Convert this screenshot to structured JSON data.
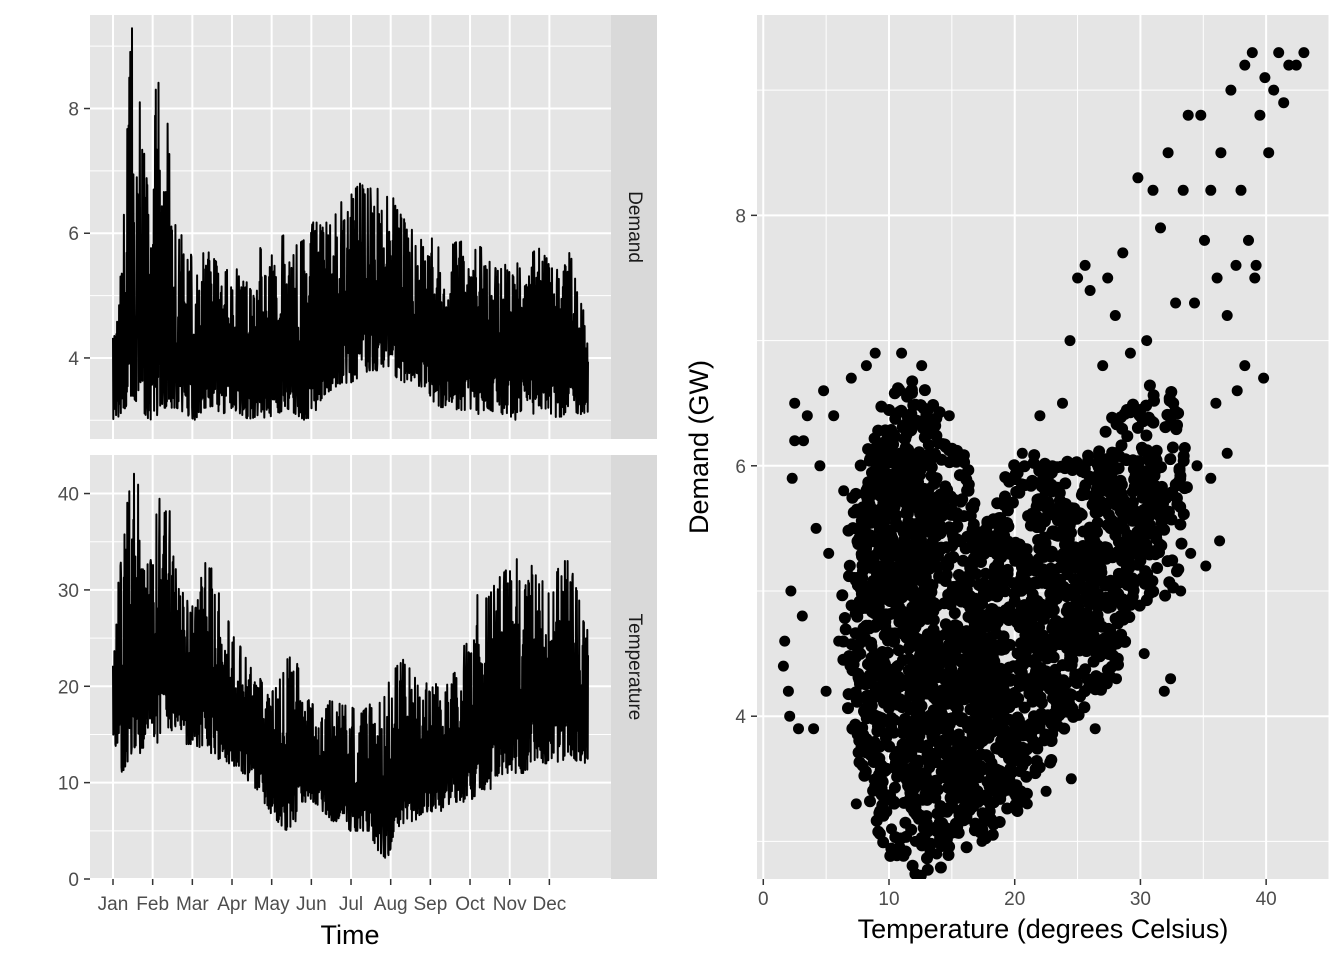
{
  "colors": {
    "panel_background": "#e5e5e5",
    "grid_major": "#ffffff",
    "strip_background": "#d9d9d9",
    "series": "#000000",
    "tick_text": "#4d4d4d"
  },
  "chart_data": [
    {
      "type": "line",
      "facets": [
        "Demand",
        "Temperature"
      ],
      "xlabel": "Time",
      "x_tick_labels": [
        "Jan",
        "Feb",
        "Mar",
        "Apr",
        "May",
        "Jun",
        "Jul",
        "Aug",
        "Sep",
        "Oct",
        "Nov",
        "Dec"
      ],
      "x_unit": "day of year",
      "x_range": [
        1,
        365
      ],
      "series": [
        {
          "facet": "Demand",
          "ylim": [
            2.7,
            9.5
          ],
          "y_ticks": [
            4,
            6,
            8
          ],
          "x": [
            1,
            8,
            15,
            19,
            22,
            29,
            36,
            38,
            43,
            50,
            57,
            64,
            71,
            78,
            85,
            92,
            99,
            106,
            113,
            120,
            127,
            134,
            141,
            148,
            155,
            162,
            169,
            176,
            183,
            190,
            197,
            204,
            211,
            218,
            225,
            232,
            239,
            246,
            253,
            260,
            267,
            274,
            281,
            288,
            295,
            302,
            309,
            316,
            323,
            330,
            337,
            344,
            351,
            358,
            365
          ],
          "low": [
            3.0,
            3.1,
            3.4,
            3.3,
            3.2,
            3.0,
            3.1,
            3.2,
            3.2,
            3.2,
            3.1,
            3.0,
            3.2,
            3.2,
            3.1,
            3.2,
            3.1,
            3.0,
            3.1,
            3.0,
            3.1,
            3.2,
            3.1,
            3.0,
            3.1,
            3.4,
            3.5,
            3.6,
            3.6,
            3.7,
            3.8,
            3.8,
            3.9,
            3.7,
            3.5,
            3.6,
            3.5,
            3.3,
            3.2,
            3.3,
            3.1,
            3.2,
            3.1,
            3.2,
            3.1,
            3.1,
            3.0,
            3.2,
            3.1,
            3.2,
            3.1,
            3.0,
            3.2,
            3.1,
            3.1
          ],
          "high": [
            4.4,
            5.6,
            9.3,
            9.2,
            7.9,
            6.4,
            9.2,
            6.3,
            7.8,
            5.8,
            6.2,
            5.2,
            5.8,
            5.6,
            5.4,
            5.7,
            5.2,
            5.3,
            5.8,
            5.5,
            5.9,
            6.0,
            5.8,
            5.9,
            6.2,
            6.1,
            6.3,
            6.5,
            6.6,
            6.8,
            6.7,
            6.8,
            6.9,
            6.4,
            6.2,
            6.0,
            6.1,
            5.9,
            5.7,
            5.8,
            5.9,
            5.6,
            5.8,
            5.7,
            5.4,
            5.5,
            5.6,
            5.3,
            5.7,
            5.8,
            5.6,
            5.3,
            5.7,
            5.1,
            4.4
          ]
        },
        {
          "facet": "Temperature",
          "ylim": [
            0,
            44
          ],
          "y_ticks": [
            0,
            10,
            20,
            30,
            40
          ],
          "x": [
            1,
            8,
            15,
            19,
            22,
            29,
            36,
            38,
            43,
            50,
            57,
            64,
            71,
            78,
            85,
            92,
            99,
            106,
            113,
            120,
            127,
            134,
            141,
            148,
            155,
            162,
            169,
            176,
            183,
            190,
            197,
            204,
            211,
            218,
            225,
            232,
            239,
            246,
            253,
            260,
            267,
            274,
            281,
            288,
            295,
            302,
            309,
            316,
            323,
            330,
            337,
            344,
            351,
            358,
            365
          ],
          "low": [
            15,
            11,
            13,
            14,
            13,
            15,
            14,
            16,
            15,
            16,
            14,
            14,
            13,
            13,
            12,
            12,
            11,
            10,
            9,
            7,
            6,
            5,
            6,
            8,
            8,
            7,
            6,
            6,
            5,
            5,
            5,
            3,
            2,
            5,
            6,
            6,
            7,
            7,
            7,
            8,
            8,
            8,
            9,
            9,
            10,
            11,
            11,
            11,
            12,
            12,
            12,
            12,
            13,
            12,
            12
          ],
          "high": [
            26,
            34,
            43,
            43,
            38,
            32,
            41,
            36,
            40,
            31,
            29,
            28,
            33,
            32,
            28,
            26,
            24,
            22,
            21,
            19,
            20,
            23,
            23,
            19,
            18,
            17,
            19,
            18,
            18,
            17,
            18,
            19,
            20,
            22,
            23,
            21,
            20,
            21,
            19,
            21,
            22,
            27,
            30,
            29,
            31,
            32,
            34,
            30,
            33,
            31,
            30,
            33,
            33,
            29,
            26
          ]
        }
      ]
    },
    {
      "type": "scatter",
      "xlabel": "Temperature (degrees Celsius)",
      "ylabel": "Demand (GW)",
      "xlim": [
        -0.5,
        45
      ],
      "ylim": [
        2.7,
        9.6
      ],
      "x_ticks": [
        0,
        10,
        20,
        30,
        40
      ],
      "y_ticks": [
        4,
        6,
        8
      ],
      "points": [
        [
          1.6,
          4.4
        ],
        [
          1.7,
          4.6
        ],
        [
          2.0,
          4.2
        ],
        [
          2.1,
          4.0
        ],
        [
          2.2,
          5.0
        ],
        [
          2.3,
          5.9
        ],
        [
          2.5,
          6.5
        ],
        [
          2.5,
          6.2
        ],
        [
          2.8,
          3.9
        ],
        [
          3.1,
          4.8
        ],
        [
          3.2,
          6.2
        ],
        [
          3.5,
          6.4
        ],
        [
          4.0,
          3.9
        ],
        [
          4.2,
          5.5
        ],
        [
          4.5,
          6.0
        ],
        [
          4.8,
          6.6
        ],
        [
          5.0,
          4.2
        ],
        [
          5.2,
          5.3
        ],
        [
          5.6,
          6.4
        ],
        [
          6.0,
          4.6
        ],
        [
          6.4,
          5.8
        ],
        [
          7.0,
          6.7
        ],
        [
          7.4,
          3.3
        ],
        [
          8.2,
          6.8
        ],
        [
          8.9,
          6.9
        ],
        [
          10.2,
          3.1
        ],
        [
          11.0,
          6.9
        ],
        [
          12.1,
          3.0
        ],
        [
          12.6,
          6.8
        ],
        [
          13.8,
          2.9
        ],
        [
          14.8,
          6.4
        ],
        [
          17.4,
          3.0
        ],
        [
          19.6,
          5.7
        ],
        [
          21.0,
          3.3
        ],
        [
          22.5,
          3.4
        ],
        [
          24.5,
          3.5
        ],
        [
          26.4,
          3.9
        ],
        [
          28.1,
          4.3
        ],
        [
          30.3,
          4.5
        ],
        [
          31.9,
          4.2
        ],
        [
          32.4,
          4.3
        ],
        [
          33.2,
          5.0
        ],
        [
          34.0,
          5.3
        ],
        [
          34.5,
          6.0
        ],
        [
          35.2,
          5.2
        ],
        [
          35.6,
          5.9
        ],
        [
          36.0,
          6.5
        ],
        [
          36.9,
          6.1
        ],
        [
          23.0,
          6.0
        ],
        [
          23.8,
          6.5
        ],
        [
          24.4,
          7.0
        ],
        [
          25.0,
          7.5
        ],
        [
          25.6,
          7.6
        ],
        [
          26.0,
          7.4
        ],
        [
          27.0,
          6.8
        ],
        [
          27.4,
          7.5
        ],
        [
          28.0,
          7.2
        ],
        [
          28.6,
          7.7
        ],
        [
          29.2,
          6.9
        ],
        [
          29.8,
          8.3
        ],
        [
          30.5,
          7.0
        ],
        [
          31.0,
          8.2
        ],
        [
          31.6,
          7.9
        ],
        [
          32.2,
          8.5
        ],
        [
          32.8,
          7.3
        ],
        [
          33.4,
          8.2
        ],
        [
          33.8,
          8.8
        ],
        [
          34.3,
          7.3
        ],
        [
          34.8,
          8.8
        ],
        [
          35.1,
          7.8
        ],
        [
          35.6,
          8.2
        ],
        [
          36.1,
          7.5
        ],
        [
          36.4,
          8.5
        ],
        [
          36.9,
          7.2
        ],
        [
          37.2,
          9.0
        ],
        [
          37.6,
          7.6
        ],
        [
          38.0,
          8.2
        ],
        [
          38.3,
          9.2
        ],
        [
          38.6,
          7.8
        ],
        [
          38.9,
          9.3
        ],
        [
          39.2,
          7.6
        ],
        [
          39.5,
          8.8
        ],
        [
          39.9,
          9.1
        ],
        [
          40.2,
          8.5
        ],
        [
          40.6,
          9.0
        ],
        [
          41.0,
          9.3
        ],
        [
          41.4,
          8.9
        ],
        [
          41.8,
          9.2
        ],
        [
          42.4,
          9.2
        ],
        [
          43.0,
          9.3
        ],
        [
          39.8,
          6.7
        ],
        [
          38.3,
          6.8
        ],
        [
          39.1,
          7.5
        ],
        [
          37.7,
          6.6
        ],
        [
          36.3,
          5.4
        ],
        [
          20.6,
          6.1
        ],
        [
          22.0,
          6.4
        ]
      ],
      "clouds": [
        {
          "cx": 12.5,
          "cy": 4.6,
          "rx": 5.6,
          "ry": 1.9
        },
        {
          "cx": 11.5,
          "cy": 5.7,
          "rx": 3.5,
          "ry": 1.0
        },
        {
          "cx": 10.0,
          "cy": 4.8,
          "rx": 3.8,
          "ry": 1.5
        },
        {
          "cx": 15.5,
          "cy": 3.8,
          "rx": 4.5,
          "ry": 0.9
        },
        {
          "cx": 18.0,
          "cy": 4.3,
          "rx": 4.5,
          "ry": 1.3
        },
        {
          "cx": 21.0,
          "cy": 4.8,
          "rx": 4.2,
          "ry": 1.3
        },
        {
          "cx": 24.0,
          "cy": 5.0,
          "rx": 3.5,
          "ry": 1.1
        },
        {
          "cx": 26.5,
          "cy": 5.2,
          "rx": 3.0,
          "ry": 1.0
        },
        {
          "cx": 29.0,
          "cy": 5.6,
          "rx": 2.8,
          "ry": 0.9
        },
        {
          "cx": 31.5,
          "cy": 5.8,
          "rx": 2.2,
          "ry": 0.9
        }
      ]
    }
  ]
}
